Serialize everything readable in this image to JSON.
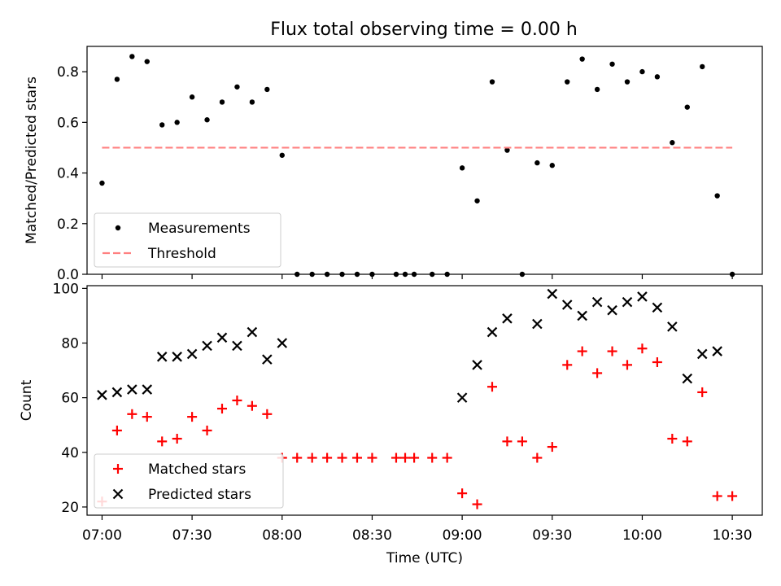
{
  "title": "Flux total observing time = 0.00 h",
  "chart_data": [
    {
      "type": "scatter",
      "ylabel": "Matched/Predicted stars",
      "xlabel": "",
      "xlim": [
        "06:55",
        "10:40"
      ],
      "ylim": [
        0,
        0.9
      ],
      "yticks": [
        0,
        0.2,
        0.4,
        0.6,
        0.8
      ],
      "ytick_labels": [
        "0.0",
        "0.2",
        "0.4",
        "0.6",
        "0.8"
      ],
      "grid": false,
      "legend_position": "lower-left",
      "series": [
        {
          "name": "Measurements",
          "marker": "dot",
          "color": "#000000",
          "points": [
            [
              "07:00",
              0.36
            ],
            [
              "07:05",
              0.77
            ],
            [
              "07:10",
              0.86
            ],
            [
              "07:15",
              0.84
            ],
            [
              "07:20",
              0.59
            ],
            [
              "07:25",
              0.6
            ],
            [
              "07:30",
              0.7
            ],
            [
              "07:35",
              0.61
            ],
            [
              "07:40",
              0.68
            ],
            [
              "07:45",
              0.74
            ],
            [
              "07:50",
              0.68
            ],
            [
              "07:55",
              0.73
            ],
            [
              "08:00",
              0.47
            ],
            [
              "08:05",
              0.0
            ],
            [
              "08:10",
              0.0
            ],
            [
              "08:15",
              0.0
            ],
            [
              "08:20",
              0.0
            ],
            [
              "08:25",
              0.0
            ],
            [
              "08:30",
              0.0
            ],
            [
              "08:38",
              0.0
            ],
            [
              "08:41",
              0.0
            ],
            [
              "08:44",
              0.0
            ],
            [
              "08:50",
              0.0
            ],
            [
              "08:55",
              0.0
            ],
            [
              "09:00",
              0.42
            ],
            [
              "09:05",
              0.29
            ],
            [
              "09:10",
              0.76
            ],
            [
              "09:15",
              0.49
            ],
            [
              "09:20",
              0.0
            ],
            [
              "09:25",
              0.44
            ],
            [
              "09:30",
              0.43
            ],
            [
              "09:35",
              0.76
            ],
            [
              "09:40",
              0.85
            ],
            [
              "09:45",
              0.73
            ],
            [
              "09:50",
              0.83
            ],
            [
              "09:55",
              0.76
            ],
            [
              "10:00",
              0.8
            ],
            [
              "10:05",
              0.78
            ],
            [
              "10:10",
              0.52
            ],
            [
              "10:15",
              0.66
            ],
            [
              "10:20",
              0.82
            ],
            [
              "10:25",
              0.31
            ],
            [
              "10:30",
              0.0
            ]
          ]
        },
        {
          "name": "Threshold",
          "marker": "dashed-line",
          "color": "#ff8080",
          "points": [
            [
              "07:00",
              0.5
            ],
            [
              "10:30",
              0.5
            ]
          ]
        }
      ]
    },
    {
      "type": "scatter",
      "ylabel": "Count",
      "xlabel": "Time (UTC)",
      "xlim": [
        "06:55",
        "10:40"
      ],
      "ylim": [
        17,
        101
      ],
      "yticks": [
        20,
        40,
        60,
        80,
        100
      ],
      "ytick_labels": [
        "20",
        "40",
        "60",
        "80",
        "100"
      ],
      "xticks": [
        "07:00",
        "07:30",
        "08:00",
        "08:30",
        "09:00",
        "09:30",
        "10:00",
        "10:30"
      ],
      "grid": false,
      "legend_position": "lower-left",
      "series": [
        {
          "name": "Matched stars",
          "marker": "plus",
          "color": "#ff0000",
          "points": [
            [
              "07:00",
              22
            ],
            [
              "07:05",
              48
            ],
            [
              "07:10",
              54
            ],
            [
              "07:15",
              53
            ],
            [
              "07:20",
              44
            ],
            [
              "07:25",
              45
            ],
            [
              "07:30",
              53
            ],
            [
              "07:35",
              48
            ],
            [
              "07:40",
              56
            ],
            [
              "07:45",
              59
            ],
            [
              "07:50",
              57
            ],
            [
              "07:55",
              54
            ],
            [
              "08:00",
              38
            ],
            [
              "08:05",
              38
            ],
            [
              "08:10",
              38
            ],
            [
              "08:15",
              38
            ],
            [
              "08:20",
              38
            ],
            [
              "08:25",
              38
            ],
            [
              "08:30",
              38
            ],
            [
              "08:38",
              38
            ],
            [
              "08:41",
              38
            ],
            [
              "08:44",
              38
            ],
            [
              "08:50",
              38
            ],
            [
              "08:55",
              38
            ],
            [
              "09:00",
              25
            ],
            [
              "09:05",
              21
            ],
            [
              "09:10",
              64
            ],
            [
              "09:15",
              44
            ],
            [
              "09:20",
              44
            ],
            [
              "09:25",
              38
            ],
            [
              "09:30",
              42
            ],
            [
              "09:35",
              72
            ],
            [
              "09:40",
              77
            ],
            [
              "09:45",
              69
            ],
            [
              "09:50",
              77
            ],
            [
              "09:55",
              72
            ],
            [
              "10:00",
              78
            ],
            [
              "10:05",
              73
            ],
            [
              "10:10",
              45
            ],
            [
              "10:15",
              44
            ],
            [
              "10:20",
              62
            ],
            [
              "10:25",
              24
            ],
            [
              "10:30",
              24
            ]
          ]
        },
        {
          "name": "Predicted stars",
          "marker": "x",
          "color": "#000000",
          "points": [
            [
              "07:00",
              61
            ],
            [
              "07:05",
              62
            ],
            [
              "07:10",
              63
            ],
            [
              "07:15",
              63
            ],
            [
              "07:20",
              75
            ],
            [
              "07:25",
              75
            ],
            [
              "07:30",
              76
            ],
            [
              "07:35",
              79
            ],
            [
              "07:40",
              82
            ],
            [
              "07:45",
              79
            ],
            [
              "07:50",
              84
            ],
            [
              "07:55",
              74
            ],
            [
              "08:00",
              80
            ],
            [
              "09:00",
              60
            ],
            [
              "09:05",
              72
            ],
            [
              "09:10",
              84
            ],
            [
              "09:15",
              89
            ],
            [
              "09:25",
              87
            ],
            [
              "09:30",
              98
            ],
            [
              "09:35",
              94
            ],
            [
              "09:40",
              90
            ],
            [
              "09:45",
              95
            ],
            [
              "09:50",
              92
            ],
            [
              "09:55",
              95
            ],
            [
              "10:00",
              97
            ],
            [
              "10:05",
              93
            ],
            [
              "10:10",
              86
            ],
            [
              "10:15",
              67
            ],
            [
              "10:20",
              76
            ],
            [
              "10:25",
              77
            ]
          ]
        }
      ]
    }
  ]
}
